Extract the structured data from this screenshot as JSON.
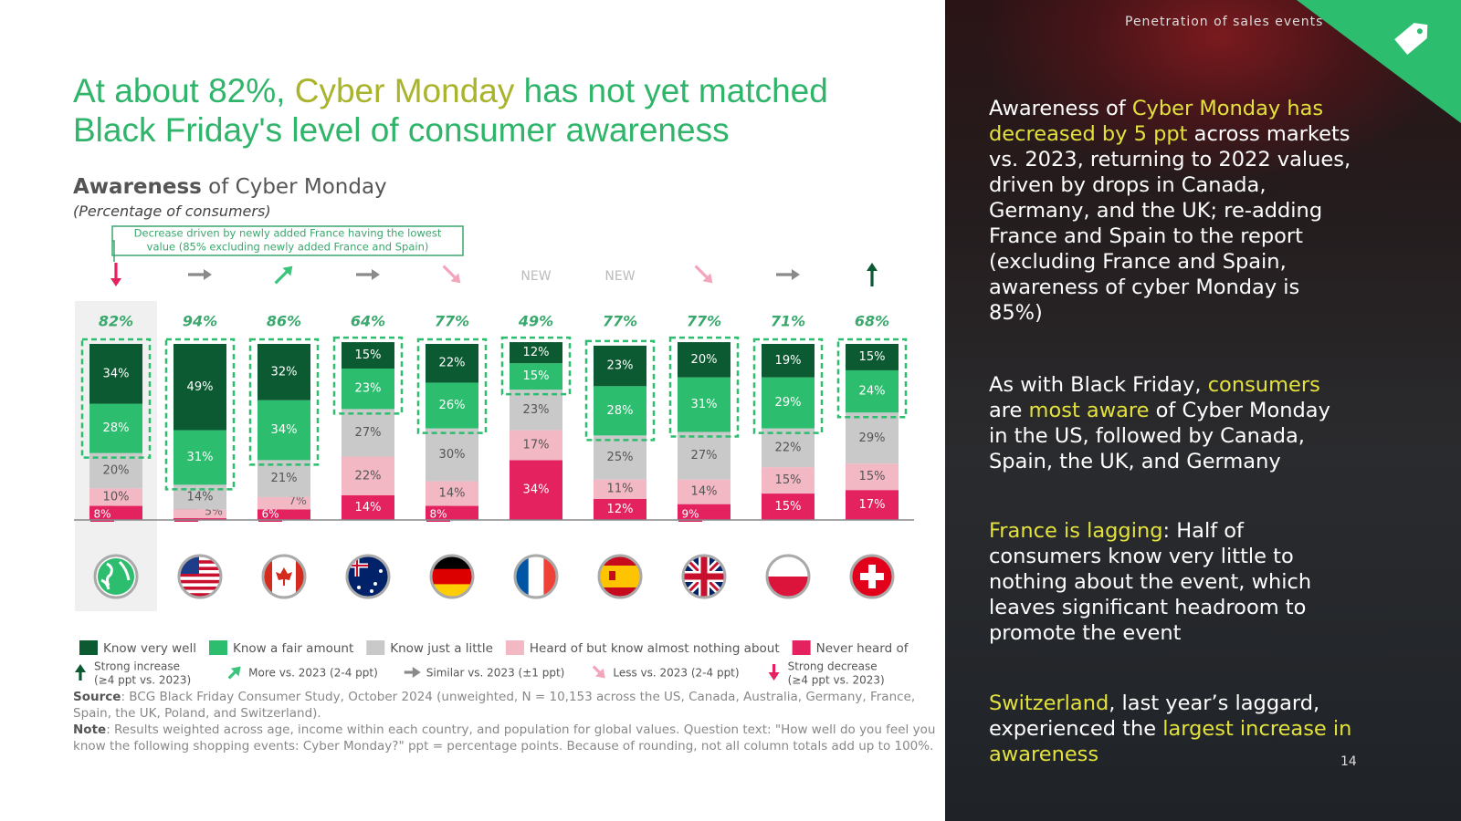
{
  "header": {
    "section": "Penetration of sales events",
    "page_number": 14
  },
  "title": [
    {
      "text": "At about 82%, ",
      "highlight": false
    },
    {
      "text": "Cyber Monday",
      "highlight": true
    },
    {
      "text": " has not yet matched Black Friday's level of consumer awareness",
      "highlight": false
    }
  ],
  "chart_data": {
    "type": "bar",
    "stacked": true,
    "title": [
      {
        "text": "Awareness",
        "bold": true
      },
      {
        "text": " of Cyber Monday",
        "bold": false
      }
    ],
    "subtitle": "(Percentage of consumers)",
    "annotation": [
      "Decrease driven by newly added France having the lowest",
      "value (85% excluding newly added France and Spain)"
    ],
    "categories": [
      null,
      null,
      null,
      null,
      null,
      null,
      null,
      null,
      null,
      null
    ],
    "ylim": [
      0,
      100
    ],
    "series": [
      {
        "name": "Never heard of",
        "color": "#e3225f",
        "values": [
          8,
          1,
          6,
          14,
          8,
          34,
          12,
          9,
          15,
          17
        ],
        "value_labels": [
          "8%",
          "1%",
          "6%",
          "14%",
          "8%",
          "34%",
          "12%",
          "9%",
          "15%",
          "17%"
        ]
      },
      {
        "name": "Heard of but know almost nothing about",
        "color": "#f2b8c4",
        "values": [
          10,
          5,
          7,
          22,
          14,
          17,
          11,
          14,
          15,
          15
        ],
        "value_labels": [
          "10%",
          "5%",
          "7%",
          "22%",
          "14%",
          "17%",
          "11%",
          "14%",
          "15%",
          "15%"
        ]
      },
      {
        "name": "Know just a little",
        "color": "#c9c9c9",
        "values": [
          20,
          14,
          21,
          27,
          30,
          23,
          25,
          27,
          22,
          29
        ],
        "value_labels": [
          "20%",
          "14%",
          "21%",
          "27%",
          "30%",
          "23%",
          "25%",
          "27%",
          "22%",
          "29%"
        ]
      },
      {
        "name": "Know a fair amount",
        "color": "#2dbd6e",
        "values": [
          28,
          31,
          34,
          23,
          26,
          15,
          28,
          31,
          29,
          24
        ],
        "value_labels": [
          "28%",
          "31%",
          "34%",
          "23%",
          "26%",
          "15%",
          "28%",
          "31%",
          "29%",
          "24%"
        ]
      },
      {
        "name": "Know very well",
        "color": "#0b5a32",
        "values": [
          34,
          49,
          32,
          15,
          22,
          12,
          23,
          20,
          19,
          15
        ],
        "value_labels": [
          "34%",
          "49%",
          "32%",
          "15%",
          "22%",
          "12%",
          "23%",
          "20%",
          "19%",
          "15%"
        ]
      }
    ],
    "totals": {
      "values": [
        82,
        94,
        86,
        64,
        77,
        49,
        77,
        77,
        71,
        68
      ],
      "value_labels": [
        "82%",
        "94%",
        "86%",
        "64%",
        "77%",
        "49%",
        "77%",
        "77%",
        "71%",
        "68%"
      ]
    },
    "trends": [
      {
        "arrow": "strong-decrease"
      },
      {
        "arrow": "similar"
      },
      {
        "arrow": "more"
      },
      {
        "arrow": "similar"
      },
      {
        "arrow": "less"
      },
      {
        "label": "NEW"
      },
      {
        "label": "NEW"
      },
      {
        "arrow": "less"
      },
      {
        "arrow": "similar"
      },
      {
        "arrow": "strong-increase"
      }
    ],
    "trend_legend": [
      {
        "arrow": "strong-increase",
        "label": [
          "Strong increase",
          "(≥4 ppt vs. 2023)"
        ]
      },
      {
        "arrow": "more",
        "label": [
          "More vs. 2023 (2-4 ppt)"
        ]
      },
      {
        "arrow": "similar",
        "label": [
          "Similar vs. 2023 (±1 ppt)"
        ]
      },
      {
        "arrow": "less",
        "label": [
          "Less vs. 2023 (2-4 ppt)"
        ]
      },
      {
        "arrow": "strong-decrease",
        "label": [
          "Strong decrease",
          "(≥4 ppt vs. 2023)"
        ]
      }
    ]
  },
  "source": {
    "label": "Source",
    "text": ": BCG Black Friday Consumer Study, October 2024 (unweighted, N = 10,153 across the US, Canada, Australia, Germany, France, Spain, the UK, Poland, and Switzerland)."
  },
  "note": {
    "label": "Note",
    "text": ": Results weighted across age, income within each country, and population for global values. Question text: \"How well do you feel you know the following shopping events: Cyber Monday?\" ppt = percentage points. Because of rounding, not all column totals add up to 100%."
  },
  "right_panel": {
    "paragraphs": [
      [
        {
          "text": "Awareness of ",
          "highlight": false
        },
        {
          "text": "Cyber Monday has decreased by 5 ppt",
          "highlight": true
        },
        {
          "text": " across markets vs. 2023, returning to 2022 values, driven by drops in Canada, Germany, and the UK; re-adding France and Spain to the report (excluding France and Spain, awareness of cyber Monday is 85%)",
          "highlight": false
        }
      ],
      [
        {
          "text": "As with Black Friday, ",
          "highlight": false
        },
        {
          "text": "consumers",
          "highlight": true
        },
        {
          "text": " are ",
          "highlight": false
        },
        {
          "text": "most aware",
          "highlight": true
        },
        {
          "text": " of Cyber Monday in the US, followed by Canada, Spain, the UK, and Germany",
          "highlight": false
        }
      ],
      [
        {
          "text": "France is lagging",
          "highlight": true
        },
        {
          "text": ": Half of consumers know very little to nothing about the event, which leaves significant headroom to promote the event",
          "highlight": false
        }
      ],
      [
        {
          "text": "Switzerland",
          "highlight": true
        },
        {
          "text": ", last year’s laggard, experienced the ",
          "highlight": false
        },
        {
          "text": "largest increase in awareness",
          "highlight": true
        }
      ]
    ]
  }
}
